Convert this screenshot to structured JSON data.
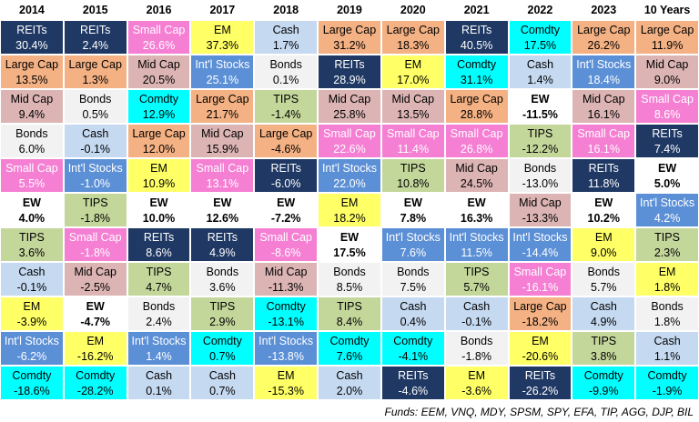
{
  "header": [
    "2014",
    "2015",
    "2016",
    "2017",
    "2018",
    "2019",
    "2020",
    "2021",
    "2022",
    "2023",
    "10 Years"
  ],
  "columns": [
    [
      [
        "REITs",
        "30.4%"
      ],
      [
        "Large Cap",
        "13.5%"
      ],
      [
        "Mid Cap",
        "9.4%"
      ],
      [
        "Bonds",
        "6.0%"
      ],
      [
        "Small Cap",
        "5.5%"
      ],
      [
        "EW",
        "4.0%"
      ],
      [
        "TIPS",
        "3.6%"
      ],
      [
        "Cash",
        "-0.1%"
      ],
      [
        "EM",
        "-3.9%"
      ],
      [
        "Int'l Stocks",
        "-6.2%"
      ],
      [
        "Comdty",
        "-18.6%"
      ]
    ],
    [
      [
        "REITs",
        "2.4%"
      ],
      [
        "Large Cap",
        "1.3%"
      ],
      [
        "Bonds",
        "0.5%"
      ],
      [
        "Cash",
        "-0.1%"
      ],
      [
        "Int'l Stocks",
        "-1.0%"
      ],
      [
        "TIPS",
        "-1.8%"
      ],
      [
        "Small Cap",
        "-1.8%"
      ],
      [
        "Mid Cap",
        "-2.5%"
      ],
      [
        "EW",
        "-4.7%"
      ],
      [
        "EM",
        "-16.2%"
      ],
      [
        "Comdty",
        "-28.2%"
      ]
    ],
    [
      [
        "Small Cap",
        "26.6%"
      ],
      [
        "Mid Cap",
        "20.5%"
      ],
      [
        "Comdty",
        "12.9%"
      ],
      [
        "Large Cap",
        "12.0%"
      ],
      [
        "EM",
        "10.9%"
      ],
      [
        "EW",
        "10.0%"
      ],
      [
        "REITs",
        "8.6%"
      ],
      [
        "TIPS",
        "4.7%"
      ],
      [
        "Bonds",
        "2.4%"
      ],
      [
        "Int'l Stocks",
        "1.4%"
      ],
      [
        "Cash",
        "0.1%"
      ]
    ],
    [
      [
        "EM",
        "37.3%"
      ],
      [
        "Int'l Stocks",
        "25.1%"
      ],
      [
        "Large Cap",
        "21.7%"
      ],
      [
        "Mid Cap",
        "15.9%"
      ],
      [
        "Small Cap",
        "13.1%"
      ],
      [
        "EW",
        "12.6%"
      ],
      [
        "REITs",
        "4.9%"
      ],
      [
        "Bonds",
        "3.6%"
      ],
      [
        "TIPS",
        "2.9%"
      ],
      [
        "Comdty",
        "0.7%"
      ],
      [
        "Cash",
        "0.7%"
      ]
    ],
    [
      [
        "Cash",
        "1.7%"
      ],
      [
        "Bonds",
        "0.1%"
      ],
      [
        "TIPS",
        "-1.4%"
      ],
      [
        "Large Cap",
        "-4.6%"
      ],
      [
        "REITs",
        "-6.0%"
      ],
      [
        "EW",
        "-7.2%"
      ],
      [
        "Small Cap",
        "-8.6%"
      ],
      [
        "Mid Cap",
        "-11.3%"
      ],
      [
        "Comdty",
        "-13.1%"
      ],
      [
        "Int'l Stocks",
        "-13.8%"
      ],
      [
        "EM",
        "-15.3%"
      ]
    ],
    [
      [
        "Large Cap",
        "31.2%"
      ],
      [
        "REITs",
        "28.9%"
      ],
      [
        "Mid Cap",
        "25.8%"
      ],
      [
        "Small Cap",
        "22.6%"
      ],
      [
        "Int'l Stocks",
        "22.0%"
      ],
      [
        "EM",
        "18.2%"
      ],
      [
        "EW",
        "17.5%"
      ],
      [
        "Bonds",
        "8.5%"
      ],
      [
        "TIPS",
        "8.4%"
      ],
      [
        "Comdty",
        "7.6%"
      ],
      [
        "Cash",
        "2.0%"
      ]
    ],
    [
      [
        "Large Cap",
        "18.3%"
      ],
      [
        "EM",
        "17.0%"
      ],
      [
        "Mid Cap",
        "13.5%"
      ],
      [
        "Small Cap",
        "11.4%"
      ],
      [
        "TIPS",
        "10.8%"
      ],
      [
        "EW",
        "7.8%"
      ],
      [
        "Int'l Stocks",
        "7.6%"
      ],
      [
        "Bonds",
        "7.5%"
      ],
      [
        "Cash",
        "0.4%"
      ],
      [
        "Comdty",
        "-4.1%"
      ],
      [
        "REITs",
        "-4.6%"
      ]
    ],
    [
      [
        "REITs",
        "40.5%"
      ],
      [
        "Comdty",
        "31.1%"
      ],
      [
        "Large Cap",
        "28.8%"
      ],
      [
        "Small Cap",
        "26.8%"
      ],
      [
        "Mid Cap",
        "24.5%"
      ],
      [
        "EW",
        "16.3%"
      ],
      [
        "Int'l Stocks",
        "11.5%"
      ],
      [
        "TIPS",
        "5.7%"
      ],
      [
        "Cash",
        "-0.1%"
      ],
      [
        "Bonds",
        "-1.8%"
      ],
      [
        "EM",
        "-3.6%"
      ]
    ],
    [
      [
        "Comdty",
        "17.5%"
      ],
      [
        "Cash",
        "1.4%"
      ],
      [
        "EW",
        "-11.5%"
      ],
      [
        "TIPS",
        "-12.2%"
      ],
      [
        "Bonds",
        "-13.0%"
      ],
      [
        "Mid Cap",
        "-13.3%"
      ],
      [
        "Int'l Stocks",
        "-14.4%"
      ],
      [
        "Small Cap",
        "-16.1%"
      ],
      [
        "Large Cap",
        "-18.2%"
      ],
      [
        "EM",
        "-20.6%"
      ],
      [
        "REITs",
        "-26.2%"
      ]
    ],
    [
      [
        "Large Cap",
        "26.2%"
      ],
      [
        "Int'l Stocks",
        "18.4%"
      ],
      [
        "Mid Cap",
        "16.1%"
      ],
      [
        "Small Cap",
        "16.1%"
      ],
      [
        "REITs",
        "11.8%"
      ],
      [
        "EW",
        "10.2%"
      ],
      [
        "EM",
        "9.0%"
      ],
      [
        "Bonds",
        "5.7%"
      ],
      [
        "Cash",
        "4.9%"
      ],
      [
        "TIPS",
        "3.8%"
      ],
      [
        "Comdty",
        "-9.9%"
      ]
    ],
    [
      [
        "Large Cap",
        "11.9%"
      ],
      [
        "Mid Cap",
        "9.0%"
      ],
      [
        "Small Cap",
        "8.6%"
      ],
      [
        "REITs",
        "7.4%"
      ],
      [
        "EW",
        "5.0%"
      ],
      [
        "Int'l Stocks",
        "4.2%"
      ],
      [
        "TIPS",
        "2.3%"
      ],
      [
        "EM",
        "1.8%"
      ],
      [
        "Bonds",
        "1.8%"
      ],
      [
        "Cash",
        "1.1%"
      ],
      [
        "Comdty",
        "-1.9%"
      ]
    ]
  ],
  "styles": {
    "REITs": {
      "fill": "#1f3864",
      "text": "#ffffff",
      "bold": false
    },
    "Large Cap": {
      "fill": "#f4b183",
      "text": "#000000",
      "bold": false
    },
    "Mid Cap": {
      "fill": "#dcb4b4",
      "text": "#000000",
      "bold": false
    },
    "Small Cap": {
      "fill": "#f57fd3",
      "text": "#ffffff",
      "bold": false
    },
    "EW": {
      "fill": "#ffffff",
      "text": "#000000",
      "bold": true
    },
    "Int'l Stocks": {
      "fill": "#5b8fd6",
      "text": "#ffffff",
      "bold": false
    },
    "TIPS": {
      "fill": "#c4d79b",
      "text": "#000000",
      "bold": false
    },
    "Cash": {
      "fill": "#c5d9f1",
      "text": "#000000",
      "bold": false
    },
    "Bonds": {
      "fill": "#f2f2f2",
      "text": "#000000",
      "bold": false
    },
    "EM": {
      "fill": "#ffff66",
      "text": "#000000",
      "bold": false
    },
    "Comdty": {
      "fill": "#00ffff",
      "text": "#000000",
      "bold": false
    }
  },
  "footer": "Funds: EEM, VNQ, MDY, SPSM, SPY, EFA, TIP, AGG, DJP, BIL"
}
